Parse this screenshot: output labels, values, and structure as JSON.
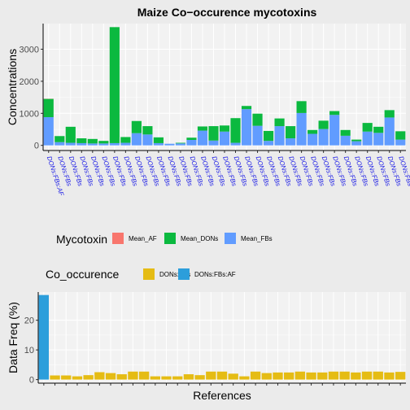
{
  "colors": {
    "Mean_AF": "#F8766D",
    "Mean_DONs": "#0BB93F",
    "Mean_FBs": "#619CFF",
    "DONs:FBs": "#E5BC14",
    "DONs:FBs:AF": "#2C9EDB",
    "panel": "#F2F2F2",
    "grid": "#FFFFFF",
    "background": "#EBEBEB"
  },
  "chart_data": [
    {
      "type": "bar",
      "stacked": true,
      "title": "Maize Co−occurence mycotoxins",
      "xlabel": "",
      "ylabel": "Concentrations",
      "ylim": [
        -160,
        3800
      ],
      "yticks": [
        0,
        1000,
        2000,
        3000
      ],
      "grid": true,
      "legend_position": "bottom",
      "legend_title": "Mycotoxin",
      "legend_entries": [
        "Mean_AF",
        "Mean_DONs",
        "Mean_FBs"
      ],
      "categories": [
        "DONs:FBs:AF",
        "DONs:FBs",
        "DONs:FBs",
        "DONs:FBs",
        "DONs:FBs",
        "DONs:FBs",
        "DONs:FBs",
        "DONs:FBs",
        "DONs:FBs",
        "DONs:FBs",
        "DONs:FBs",
        "DONs:FBs",
        "DONs:FBs",
        "DONs:FBs",
        "DONs:FBs",
        "DONs:FBs",
        "DONs:FBs",
        "DONs:FBs",
        "DONs:FBs",
        "DONs:FBs",
        "DONs:FBs",
        "DONs:FBs",
        "DONs:FBs",
        "DONs:FBs",
        "DONs:FBs",
        "DONs:FBs",
        "DONs:FBs",
        "DONs:FBs",
        "DONs:FBs",
        "DONs:FBs",
        "DONs:FBs",
        "DONs:FBs",
        "DONs:FBs"
      ],
      "series": [
        {
          "name": "Mean_AF",
          "values": [
            5,
            0,
            0,
            0,
            0,
            0,
            0,
            0,
            0,
            0,
            0,
            0,
            0,
            0,
            0,
            0,
            0,
            0,
            0,
            0,
            0,
            0,
            0,
            0,
            0,
            0,
            0,
            0,
            0,
            0,
            0,
            0,
            0
          ]
        },
        {
          "name": "Mean_FBs",
          "values": [
            880,
            100,
            80,
            70,
            60,
            60,
            70,
            80,
            380,
            340,
            70,
            50,
            60,
            170,
            460,
            150,
            430,
            80,
            1130,
            610,
            140,
            600,
            220,
            1010,
            360,
            510,
            950,
            300,
            130,
            430,
            390,
            870,
            180
          ]
        },
        {
          "name": "Mean_DONs",
          "values": [
            570,
            190,
            500,
            150,
            140,
            80,
            3620,
            180,
            380,
            260,
            180,
            0,
            20,
            70,
            130,
            450,
            190,
            770,
            100,
            380,
            310,
            240,
            380,
            370,
            120,
            260,
            120,
            180,
            50,
            270,
            190,
            230,
            260
          ]
        }
      ]
    },
    {
      "type": "bar",
      "title": "",
      "xlabel": "References",
      "ylabel": "Data Freq (%)",
      "ylim": [
        -1.2,
        29.5
      ],
      "yticks": [
        0,
        10,
        20
      ],
      "grid": true,
      "legend_position": "bottom",
      "legend_title": "Co_occurence",
      "legend_entries": [
        "DONs:FBs",
        "DONs:FBs:AF"
      ],
      "groups": [
        "DONs:FBs:AF",
        "DONs:FBs",
        "DONs:FBs",
        "DONs:FBs",
        "DONs:FBs",
        "DONs:FBs",
        "DONs:FBs",
        "DONs:FBs",
        "DONs:FBs",
        "DONs:FBs",
        "DONs:FBs",
        "DONs:FBs",
        "DONs:FBs",
        "DONs:FBs",
        "DONs:FBs",
        "DONs:FBs",
        "DONs:FBs",
        "DONs:FBs",
        "DONs:FBs",
        "DONs:FBs",
        "DONs:FBs",
        "DONs:FBs",
        "DONs:FBs",
        "DONs:FBs",
        "DONs:FBs",
        "DONs:FBs",
        "DONs:FBs",
        "DONs:FBs",
        "DONs:FBs",
        "DONs:FBs",
        "DONs:FBs",
        "DONs:FBs",
        "DONs:FBs"
      ],
      "values": [
        28.5,
        1.4,
        1.4,
        1.1,
        1.5,
        2.5,
        2.2,
        1.8,
        2.7,
        2.7,
        1.1,
        1.1,
        1.1,
        1.8,
        1.5,
        2.7,
        2.7,
        2.0,
        1.1,
        2.7,
        2.2,
        2.4,
        2.4,
        2.7,
        2.4,
        2.4,
        2.7,
        2.7,
        2.4,
        2.7,
        2.7,
        2.4,
        2.6
      ]
    }
  ]
}
